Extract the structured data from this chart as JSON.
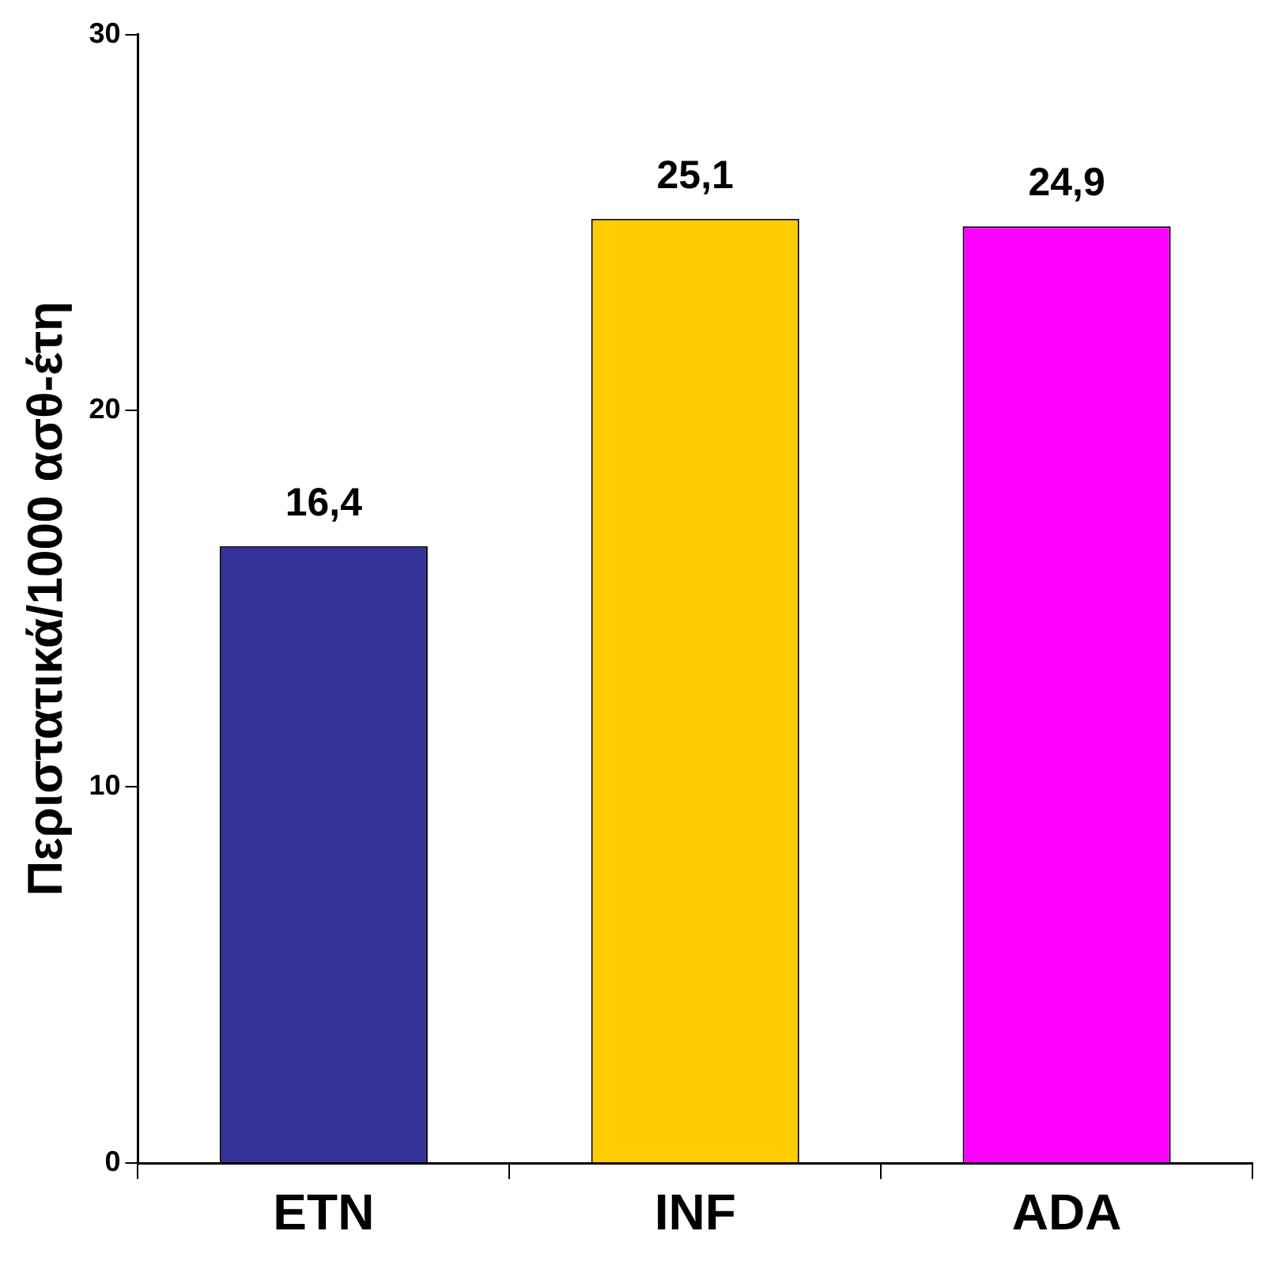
{
  "chart_data": {
    "type": "bar",
    "ylabel": "Περιστατικά/1000 ασθ-έτη",
    "categories": [
      "ETN",
      "INF",
      "ADA"
    ],
    "values": [
      16.4,
      25.1,
      24.9
    ],
    "colors": [
      "#333399",
      "#ffcc00",
      "#ff00ff"
    ],
    "value_labels": [
      "16,4",
      "25,1",
      "24,9"
    ],
    "ylim": [
      0,
      30
    ],
    "yticks": [
      0,
      10,
      20,
      30
    ],
    "grid": false,
    "legend": false
  }
}
